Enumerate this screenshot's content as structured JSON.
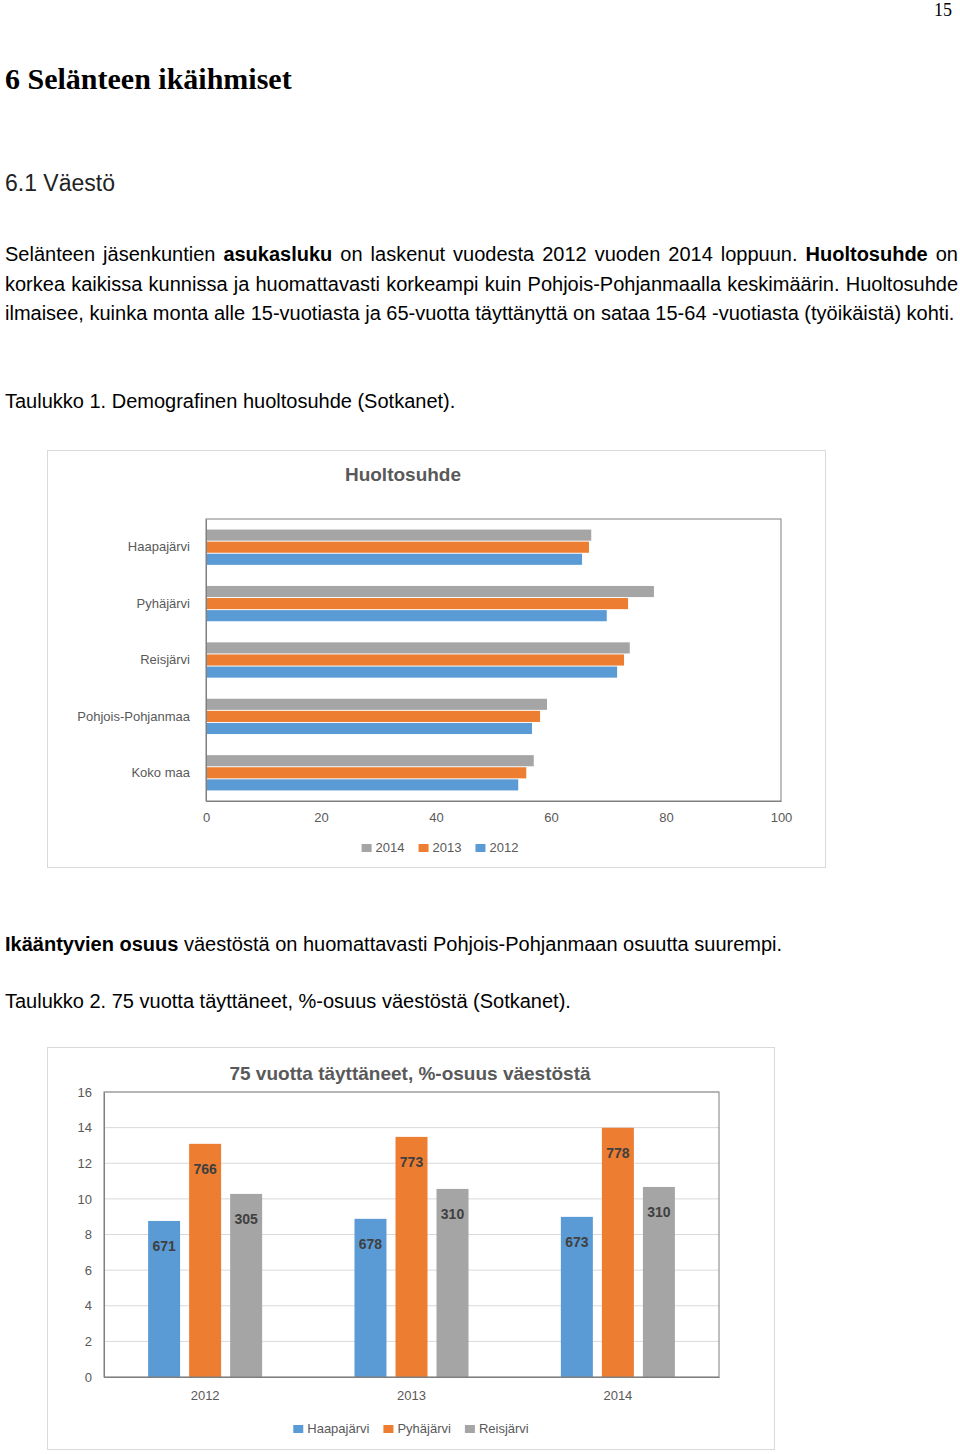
{
  "page_number": "15",
  "heading": "6 Selänteen ikäihmiset",
  "subheading": "6.1 Väestö",
  "paragraphs": [
    [
      {
        "text": "Selänteen jäsenkuntien "
      },
      {
        "text": "asukasluku",
        "bold": true
      },
      {
        "text": " on laskenut vuodesta 2012 vuoden 2014 loppuun. "
      },
      {
        "text": "Huoltosuhde",
        "bold": true
      },
      {
        "text": " on korkea kaikissa kunnissa ja huomattavasti korkeampi kuin Pohjois-Pohjanmaalla keskimäärin. Huoltosuhde ilmaisee, kuinka monta alle 15-vuotiasta ja 65-vuotta täyttänyttä on sataa 15-64 -vuotiasta (työikäistä) kohti."
      }
    ],
    [
      {
        "text": "Ikääntyvien osuus",
        "bold": true
      },
      {
        "text": " väestöstä on huomattavasti Pohjois-Pohjanmaan osuutta suurempi."
      }
    ]
  ],
  "captions": [
    "Taulukko 1. Demografinen huoltosuhde (Sotkanet).",
    "Taulukko 2. 75 vuotta täyttäneet, %-osuus väestöstä (Sotkanet)."
  ],
  "chart_data": [
    {
      "type": "bar",
      "title": "Huoltosuhde",
      "orientation": "horizontal",
      "categories": [
        "Haapajärvi",
        "Pyhäjärvi",
        "Reisjärvi",
        "Pohjois-Pohjanmaa",
        "Koko maa"
      ],
      "series": [
        {
          "name": "2014",
          "color": "#a5a5a5",
          "values": [
            67.0,
            77.9,
            73.7,
            59.3,
            57.0
          ]
        },
        {
          "name": "2013",
          "color": "#ed7d31",
          "values": [
            66.6,
            73.4,
            72.7,
            58.1,
            55.7
          ]
        },
        {
          "name": "2012",
          "color": "#5b9bd5",
          "values": [
            65.4,
            69.7,
            71.5,
            56.7,
            54.3
          ]
        }
      ],
      "xlim": [
        0,
        100
      ],
      "xticks": [
        0,
        20,
        40,
        60,
        80,
        100
      ],
      "grid": false,
      "legend": "bottom"
    },
    {
      "type": "bar",
      "title": "75 vuotta täyttäneet, %-osuus väestöstä",
      "categories": [
        "2012",
        "2013",
        "2014"
      ],
      "series": [
        {
          "name": "Haapajärvi",
          "color": "#5b9bd5",
          "values": [
            8.76,
            8.88,
            8.99
          ],
          "counts": [
            671,
            678,
            673
          ]
        },
        {
          "name": "Pyhäjärvi",
          "color": "#ed7d31",
          "values": [
            13.09,
            13.48,
            13.99
          ],
          "counts": [
            766,
            773,
            778
          ]
        },
        {
          "name": "Reisjärvi",
          "color": "#a5a5a5",
          "values": [
            10.28,
            10.56,
            10.67
          ],
          "counts": [
            305,
            310,
            310
          ]
        }
      ],
      "ylim": [
        0,
        16
      ],
      "yticks": [
        0,
        2,
        4,
        6,
        8,
        10,
        12,
        14,
        16
      ],
      "grid": true,
      "legend": "bottom"
    }
  ]
}
